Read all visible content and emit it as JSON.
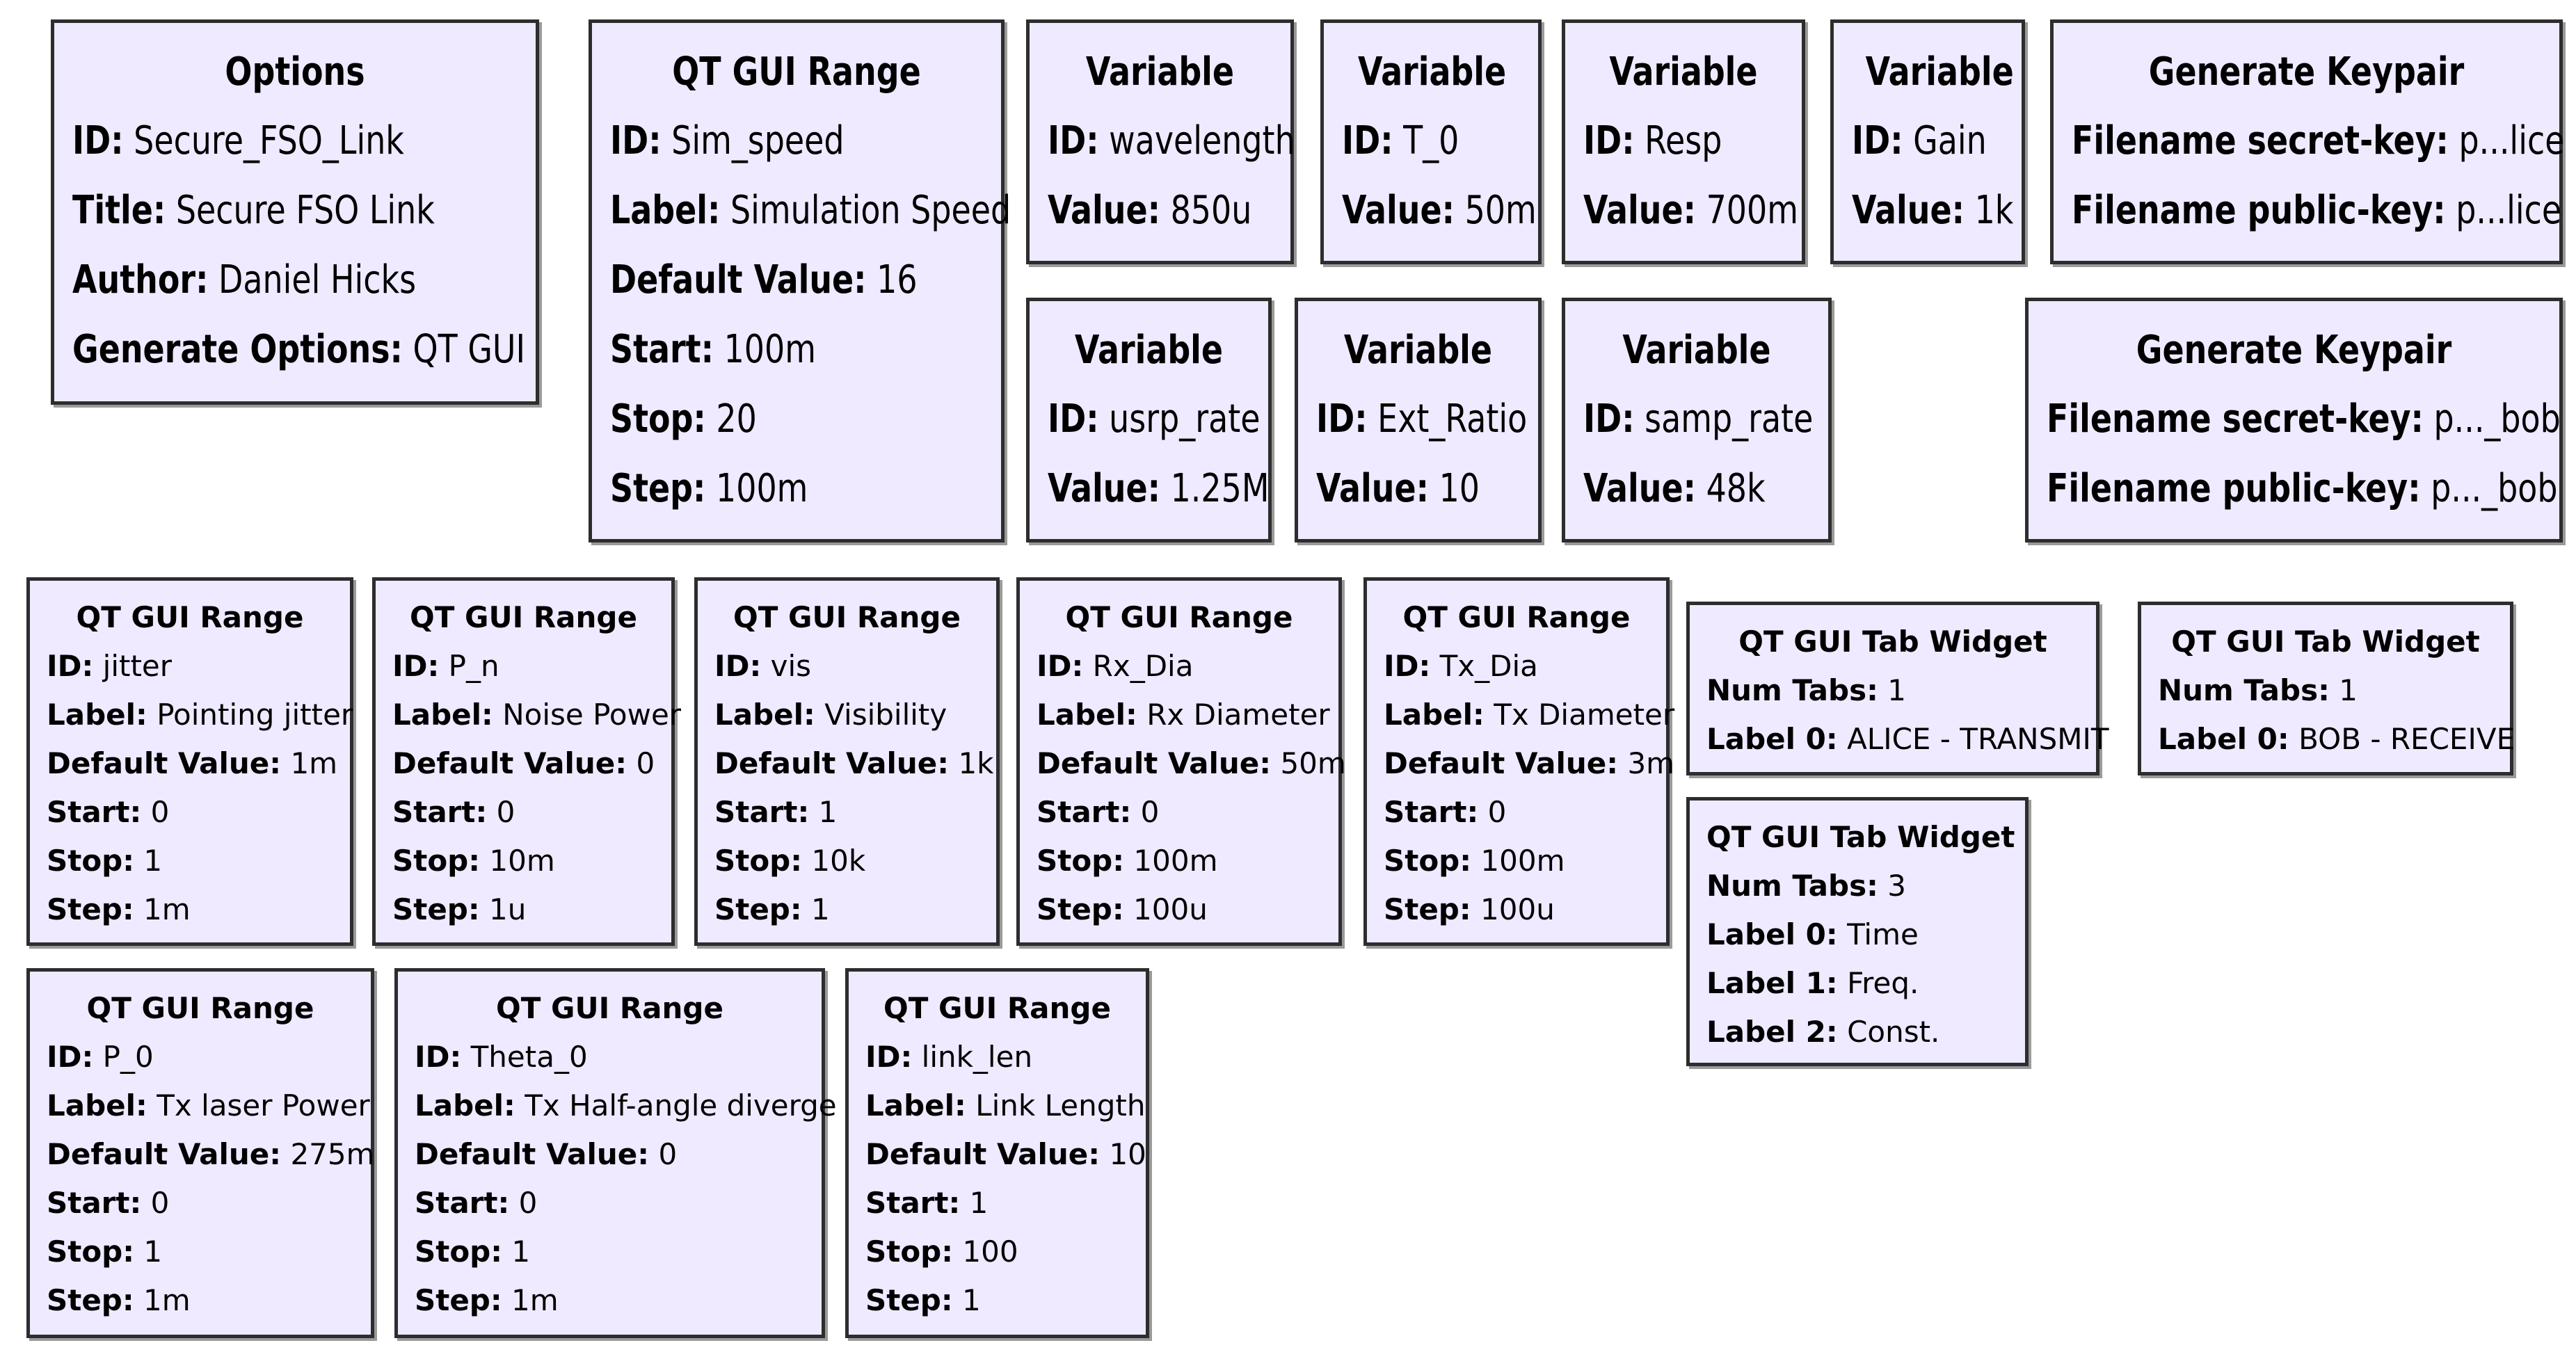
{
  "options": {
    "title": "Options",
    "rows": [
      {
        "k": "ID:",
        "v": "Secure_FSO_Link"
      },
      {
        "k": "Title:",
        "v": "Secure FSO Link"
      },
      {
        "k": "Author:",
        "v": "Daniel Hicks"
      },
      {
        "k": "Generate Options:",
        "v": "QT GUI"
      }
    ]
  },
  "range_sim": {
    "title": "QT GUI Range",
    "rows": [
      {
        "k": "ID:",
        "v": "Sim_speed"
      },
      {
        "k": "Label:",
        "v": "Simulation Speed"
      },
      {
        "k": "Default Value:",
        "v": "16"
      },
      {
        "k": "Start:",
        "v": "100m"
      },
      {
        "k": "Stop:",
        "v": "20"
      },
      {
        "k": "Step:",
        "v": "100m"
      }
    ]
  },
  "var_wavelength": {
    "title": "Variable",
    "rows": [
      {
        "k": "ID:",
        "v": "wavelength"
      },
      {
        "k": "Value:",
        "v": "850u"
      }
    ]
  },
  "var_t0": {
    "title": "Variable",
    "rows": [
      {
        "k": "ID:",
        "v": "T_0"
      },
      {
        "k": "Value:",
        "v": "50m"
      }
    ]
  },
  "var_resp": {
    "title": "Variable",
    "rows": [
      {
        "k": "ID:",
        "v": "Resp"
      },
      {
        "k": "Value:",
        "v": "700m"
      }
    ]
  },
  "var_gain": {
    "title": "Variable",
    "rows": [
      {
        "k": "ID:",
        "v": "Gain"
      },
      {
        "k": "Value:",
        "v": "1k"
      }
    ]
  },
  "keypair_alice": {
    "title": "Generate Keypair",
    "rows": [
      {
        "k": "Filename secret-key:",
        "v": "p...lice"
      },
      {
        "k": "Filename public-key:",
        "v": "p...lice"
      }
    ]
  },
  "var_usrp": {
    "title": "Variable",
    "rows": [
      {
        "k": "ID:",
        "v": "usrp_rate"
      },
      {
        "k": "Value:",
        "v": "1.25M"
      }
    ]
  },
  "var_ext": {
    "title": "Variable",
    "rows": [
      {
        "k": "ID:",
        "v": "Ext_Ratio"
      },
      {
        "k": "Value:",
        "v": "10"
      }
    ]
  },
  "var_samp": {
    "title": "Variable",
    "rows": [
      {
        "k": "ID:",
        "v": "samp_rate"
      },
      {
        "k": "Value:",
        "v": "48k"
      }
    ]
  },
  "keypair_bob": {
    "title": "Generate Keypair",
    "rows": [
      {
        "k": "Filename secret-key:",
        "v": "p..._bob"
      },
      {
        "k": "Filename public-key:",
        "v": "p..._bob"
      }
    ]
  },
  "range_jitter": {
    "title": "QT GUI Range",
    "rows": [
      {
        "k": "ID:",
        "v": "jitter"
      },
      {
        "k": "Label:",
        "v": "Pointing jitter"
      },
      {
        "k": "Default Value:",
        "v": "1m"
      },
      {
        "k": "Start:",
        "v": "0"
      },
      {
        "k": "Stop:",
        "v": "1"
      },
      {
        "k": "Step:",
        "v": "1m"
      }
    ]
  },
  "range_pn": {
    "title": "QT GUI Range",
    "rows": [
      {
        "k": "ID:",
        "v": "P_n"
      },
      {
        "k": "Label:",
        "v": "Noise Power"
      },
      {
        "k": "Default Value:",
        "v": "0"
      },
      {
        "k": "Start:",
        "v": "0"
      },
      {
        "k": "Stop:",
        "v": "10m"
      },
      {
        "k": "Step:",
        "v": "1u"
      }
    ]
  },
  "range_vis": {
    "title": "QT GUI Range",
    "rows": [
      {
        "k": "ID:",
        "v": "vis"
      },
      {
        "k": "Label:",
        "v": "Visibility"
      },
      {
        "k": "Default Value:",
        "v": "1k"
      },
      {
        "k": "Start:",
        "v": "1"
      },
      {
        "k": "Stop:",
        "v": "10k"
      },
      {
        "k": "Step:",
        "v": "1"
      }
    ]
  },
  "range_rxdia": {
    "title": "QT GUI Range",
    "rows": [
      {
        "k": "ID:",
        "v": "Rx_Dia"
      },
      {
        "k": "Label:",
        "v": "Rx Diameter"
      },
      {
        "k": "Default Value:",
        "v": "50m"
      },
      {
        "k": "Start:",
        "v": "0"
      },
      {
        "k": "Stop:",
        "v": "100m"
      },
      {
        "k": "Step:",
        "v": "100u"
      }
    ]
  },
  "range_txdia": {
    "title": "QT GUI Range",
    "rows": [
      {
        "k": "ID:",
        "v": "Tx_Dia"
      },
      {
        "k": "Label:",
        "v": "Tx Diameter"
      },
      {
        "k": "Default Value:",
        "v": "3m"
      },
      {
        "k": "Start:",
        "v": "0"
      },
      {
        "k": "Stop:",
        "v": "100m"
      },
      {
        "k": "Step:",
        "v": "100u"
      }
    ]
  },
  "tab_alice": {
    "title": "QT GUI Tab Widget",
    "rows": [
      {
        "k": "Num Tabs:",
        "v": "1"
      },
      {
        "k": "Label 0:",
        "v": "ALICE - TRANSMIT"
      }
    ]
  },
  "tab_bob": {
    "title": "QT GUI Tab Widget",
    "rows": [
      {
        "k": "Num Tabs:",
        "v": "1"
      },
      {
        "k": "Label 0:",
        "v": "BOB - RECEIVE"
      }
    ]
  },
  "tab_plots": {
    "title": "QT GUI Tab Widget",
    "rows": [
      {
        "k": "Num Tabs:",
        "v": "3"
      },
      {
        "k": "Label 0:",
        "v": "Time"
      },
      {
        "k": "Label 1:",
        "v": "Freq."
      },
      {
        "k": "Label 2:",
        "v": "Const."
      }
    ]
  },
  "range_p0": {
    "title": "QT GUI Range",
    "rows": [
      {
        "k": "ID:",
        "v": "P_0"
      },
      {
        "k": "Label:",
        "v": "Tx laser Power"
      },
      {
        "k": "Default Value:",
        "v": "275m"
      },
      {
        "k": "Start:",
        "v": "0"
      },
      {
        "k": "Stop:",
        "v": "1"
      },
      {
        "k": "Step:",
        "v": "1m"
      }
    ]
  },
  "range_theta": {
    "title": "QT GUI Range",
    "rows": [
      {
        "k": "ID:",
        "v": "Theta_0"
      },
      {
        "k": "Label:",
        "v": "Tx Half-angle diverge"
      },
      {
        "k": "Default Value:",
        "v": "0"
      },
      {
        "k": "Start:",
        "v": "0"
      },
      {
        "k": "Stop:",
        "v": "1"
      },
      {
        "k": "Step:",
        "v": "1m"
      }
    ]
  },
  "range_linklen": {
    "title": "QT GUI Range",
    "rows": [
      {
        "k": "ID:",
        "v": "link_len"
      },
      {
        "k": "Label:",
        "v": "Link Length"
      },
      {
        "k": "Default Value:",
        "v": "10"
      },
      {
        "k": "Start:",
        "v": "1"
      },
      {
        "k": "Stop:",
        "v": "100"
      },
      {
        "k": "Step:",
        "v": "1"
      }
    ]
  }
}
